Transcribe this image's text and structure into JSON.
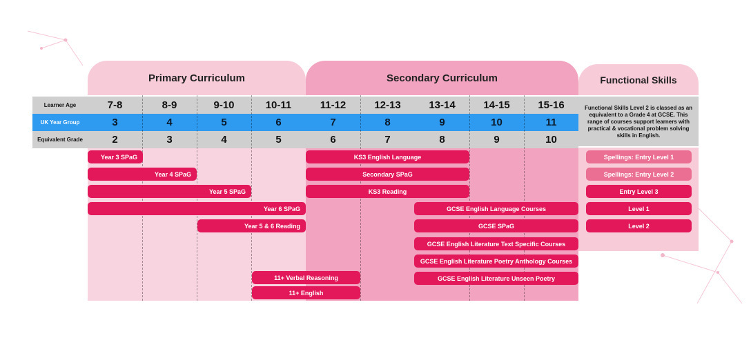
{
  "headers": {
    "primary": "Primary Curriculum",
    "secondary": "Secondary Curriculum",
    "functional": "Functional Skills"
  },
  "rows": {
    "age": {
      "label": "Learner Age",
      "values": [
        "7-8",
        "8-9",
        "9-10",
        "10-11",
        "11-12",
        "12-13",
        "13-14",
        "14-15",
        "15-16"
      ]
    },
    "year": {
      "label": "UK Year Group",
      "values": [
        "3",
        "4",
        "5",
        "6",
        "7",
        "8",
        "9",
        "10",
        "11"
      ]
    },
    "grade": {
      "label": "Equivalent Grade",
      "values": [
        "2",
        "3",
        "4",
        "5",
        "6",
        "7",
        "8",
        "9",
        "10"
      ]
    }
  },
  "functional_note": "Functional Skills Level 2 is classed as an equivalent to a Grade 4 at GCSE. This range of courses support learners with practical & vocational problem solving skills in English.",
  "courses": {
    "year3_spag": "Year 3 SPaG",
    "year4_spag": "Year 4 SPaG",
    "year5_spag": "Year 5 SPaG",
    "year6_spag": "Year 6 SPaG",
    "y56_reading": "Year 5 & 6 Reading",
    "verbal": "11+ Verbal Reasoning",
    "english11": "11+ English",
    "ks3_language": "KS3 English Language",
    "secondary_spag": "Secondary SPaG",
    "ks3_reading": "KS3 Reading",
    "gcse_lang": "GCSE English Language Courses",
    "gcse_spag": "GCSE SPaG",
    "gcse_lit_text": "GCSE English Literature Text Specific Courses",
    "gcse_poetry": "GCSE English Literature Poetry Anthology Courses",
    "gcse_unseen": "GCSE English Literature Unseen Poetry",
    "fs_entry1": "Spellings: Entry Level 1",
    "fs_entry2": "Spellings: Entry Level 2",
    "fs_entry3": "Entry Level 3",
    "fs_level1": "Level 1",
    "fs_level2": "Level 2"
  },
  "colors": {
    "pill": "#e2185a",
    "pill_light": "#ea6f93",
    "primary_bg": "#f8d3e0",
    "secondary_bg": "#f2a3bf",
    "year_row": "#2e9af0",
    "label_row": "#cfcfcf"
  }
}
